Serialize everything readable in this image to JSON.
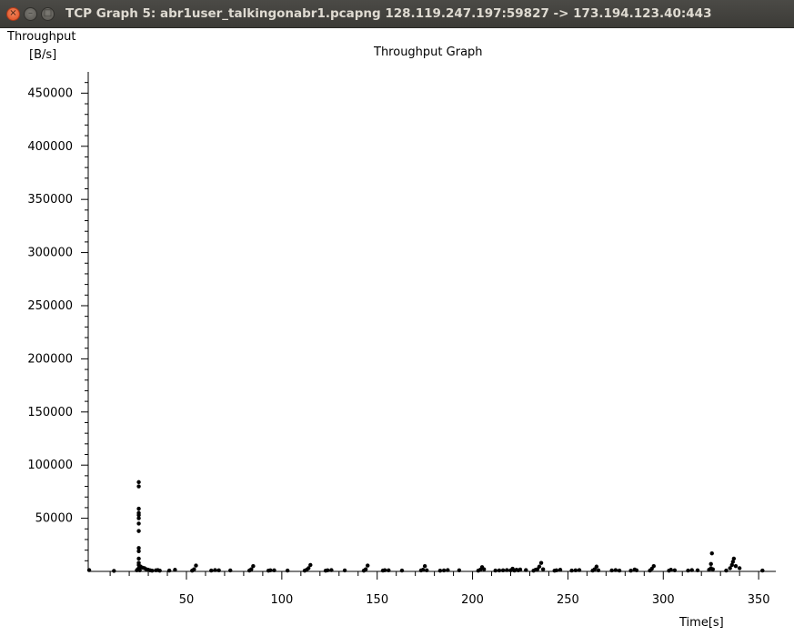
{
  "window": {
    "title": "TCP Graph 5: abr1user_talkingonabr1.pcapng 128.119.247.197:59827 -> 173.194.123.40:443",
    "close_glyph": "×",
    "minimize_glyph": "–",
    "maximize_glyph": "□"
  },
  "chart_data": {
    "type": "scatter",
    "title": "Throughput Graph",
    "ylabel_line1": "Throughput",
    "ylabel_line2": "[B/s]",
    "xlabel": "Time[s]",
    "xlim": [
      -1.5,
      359
    ],
    "ylim": [
      0,
      470000
    ],
    "x_ticks": [
      50,
      100,
      150,
      200,
      250,
      300,
      350
    ],
    "y_ticks": [
      50000,
      100000,
      150000,
      200000,
      250000,
      300000,
      350000,
      400000,
      450000
    ],
    "grid": false,
    "legend": "none",
    "point_color": "#000000",
    "points": [
      [
        -1,
        1200
      ],
      [
        12,
        500
      ],
      [
        24,
        1000
      ],
      [
        24.5,
        2000
      ],
      [
        25,
        84000
      ],
      [
        25,
        80000
      ],
      [
        25,
        59000
      ],
      [
        25,
        55000
      ],
      [
        25,
        53000
      ],
      [
        25,
        50000
      ],
      [
        25,
        45000
      ],
      [
        25,
        38000
      ],
      [
        25,
        22000
      ],
      [
        25,
        19000
      ],
      [
        25,
        12000
      ],
      [
        25,
        8000
      ],
      [
        25,
        6000
      ],
      [
        25,
        3000
      ],
      [
        25.5,
        1000
      ],
      [
        26,
        4500
      ],
      [
        27,
        3500
      ],
      [
        28,
        3000
      ],
      [
        29,
        2000
      ],
      [
        30,
        1500
      ],
      [
        31,
        1000
      ],
      [
        32,
        700
      ],
      [
        34,
        1000
      ],
      [
        35,
        1200
      ],
      [
        36,
        700
      ],
      [
        41,
        800
      ],
      [
        44,
        1500
      ],
      [
        53,
        700
      ],
      [
        54,
        2000
      ],
      [
        55,
        5500
      ],
      [
        63,
        800
      ],
      [
        65,
        1200
      ],
      [
        67,
        1000
      ],
      [
        73,
        900
      ],
      [
        83,
        800
      ],
      [
        84,
        2000
      ],
      [
        85,
        5000
      ],
      [
        93,
        700
      ],
      [
        94,
        1000
      ],
      [
        96,
        1000
      ],
      [
        103,
        800
      ],
      [
        112,
        700
      ],
      [
        113,
        1500
      ],
      [
        114,
        3000
      ],
      [
        115,
        6000
      ],
      [
        123,
        700
      ],
      [
        124,
        1000
      ],
      [
        126,
        1200
      ],
      [
        133,
        900
      ],
      [
        143,
        700
      ],
      [
        144,
        2000
      ],
      [
        145,
        5500
      ],
      [
        153,
        800
      ],
      [
        154,
        1100
      ],
      [
        156,
        1000
      ],
      [
        163,
        800
      ],
      [
        173,
        900
      ],
      [
        174,
        1500
      ],
      [
        175,
        5000
      ],
      [
        176,
        1000
      ],
      [
        183,
        700
      ],
      [
        185,
        900
      ],
      [
        187,
        1200
      ],
      [
        193,
        1000
      ],
      [
        203,
        700
      ],
      [
        204,
        1500
      ],
      [
        205,
        4000
      ],
      [
        206,
        2000
      ],
      [
        212,
        800
      ],
      [
        214,
        900
      ],
      [
        216,
        1000
      ],
      [
        218,
        1200
      ],
      [
        220,
        1000
      ],
      [
        221,
        2500
      ],
      [
        222,
        800
      ],
      [
        223,
        1500
      ],
      [
        224,
        1000
      ],
      [
        225,
        1800
      ],
      [
        228,
        1200
      ],
      [
        232,
        700
      ],
      [
        233,
        1500
      ],
      [
        234,
        2000
      ],
      [
        235,
        4500
      ],
      [
        236,
        8000
      ],
      [
        237,
        2000
      ],
      [
        243,
        700
      ],
      [
        244,
        1000
      ],
      [
        246,
        1500
      ],
      [
        252,
        800
      ],
      [
        254,
        1000
      ],
      [
        256,
        1200
      ],
      [
        263,
        800
      ],
      [
        264,
        2000
      ],
      [
        265,
        4500
      ],
      [
        266,
        1000
      ],
      [
        273,
        900
      ],
      [
        275,
        1200
      ],
      [
        277,
        800
      ],
      [
        283,
        700
      ],
      [
        285,
        1800
      ],
      [
        286,
        1000
      ],
      [
        293,
        800
      ],
      [
        294,
        2500
      ],
      [
        295,
        5000
      ],
      [
        303,
        700
      ],
      [
        304,
        1500
      ],
      [
        306,
        1000
      ],
      [
        313,
        800
      ],
      [
        315,
        1200
      ],
      [
        318,
        1000
      ],
      [
        324,
        1500
      ],
      [
        325,
        3000
      ],
      [
        325,
        7000
      ],
      [
        325.5,
        17000
      ],
      [
        326,
        2000
      ],
      [
        333,
        800
      ],
      [
        335,
        3000
      ],
      [
        336,
        6000
      ],
      [
        336.5,
        9000
      ],
      [
        337,
        12000
      ],
      [
        338,
        5000
      ],
      [
        340,
        3000
      ],
      [
        352,
        800
      ]
    ]
  }
}
